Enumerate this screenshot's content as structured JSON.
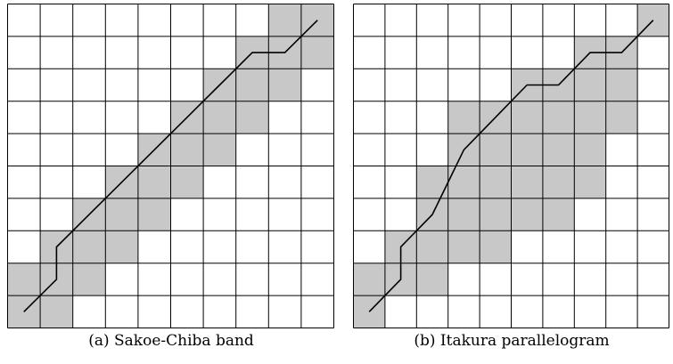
{
  "panels": [
    {
      "id": "sakoe-chiba",
      "caption": "(a) Sakoe-Chiba band",
      "grid": {
        "cols": 10,
        "rows": 10
      },
      "colors": {
        "band": "#c8c8c8",
        "line": "#000000",
        "background": "#ffffff"
      },
      "band_cells_by_row": [
        [
          1,
          2
        ],
        [
          1,
          3
        ],
        [
          2,
          4
        ],
        [
          3,
          5
        ],
        [
          4,
          6
        ],
        [
          5,
          7
        ],
        [
          6,
          8
        ],
        [
          7,
          9
        ],
        [
          8,
          10
        ],
        [
          9,
          10
        ]
      ],
      "path": [
        [
          0.5,
          0.5
        ],
        [
          1.5,
          1.5
        ],
        [
          1.5,
          2.5
        ],
        [
          2.5,
          3.5
        ],
        [
          3.5,
          4.5
        ],
        [
          4.5,
          5.5
        ],
        [
          5.5,
          6.5
        ],
        [
          6.5,
          7.5
        ],
        [
          7.5,
          8.5
        ],
        [
          8.5,
          8.5
        ],
        [
          9.5,
          9.5
        ]
      ]
    },
    {
      "id": "itakura",
      "caption": "(b) Itakura parallelogram",
      "grid": {
        "cols": 10,
        "rows": 10
      },
      "colors": {
        "band": "#c8c8c8",
        "line": "#000000",
        "background": "#ffffff"
      },
      "band_cells_by_row": [
        [
          1,
          1
        ],
        [
          1,
          3
        ],
        [
          2,
          5
        ],
        [
          3,
          7
        ],
        [
          3,
          8
        ],
        [
          4,
          8
        ],
        [
          4,
          9
        ],
        [
          6,
          9
        ],
        [
          8,
          9
        ],
        [
          10,
          10
        ]
      ],
      "path": [
        [
          0.5,
          0.5
        ],
        [
          1.5,
          1.5
        ],
        [
          1.5,
          2.5
        ],
        [
          2.5,
          3.5
        ],
        [
          3.5,
          5.5
        ],
        [
          4.5,
          6.5
        ],
        [
          5.5,
          7.5
        ],
        [
          6.5,
          7.5
        ],
        [
          7.5,
          8.5
        ],
        [
          8.5,
          8.5
        ],
        [
          9.5,
          9.5
        ]
      ]
    }
  ]
}
